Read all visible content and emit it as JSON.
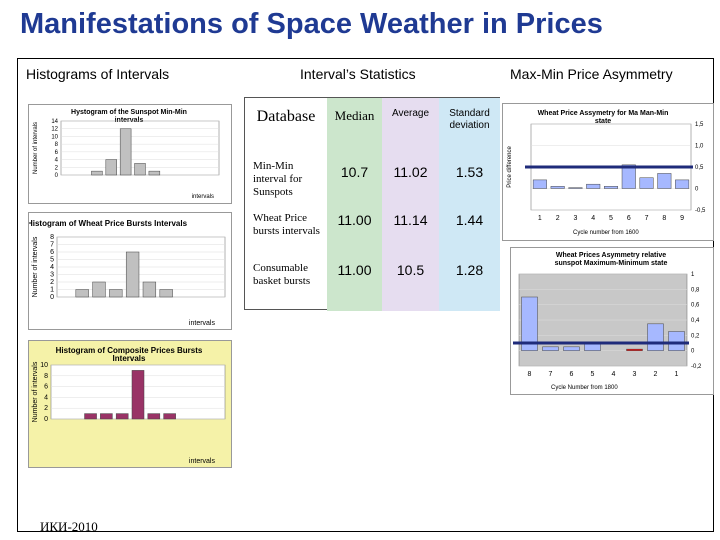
{
  "slide": {
    "title": "Manifestations of Space Weather in Prices",
    "columns": {
      "left": "Histograms of Intervals",
      "middle": "Interval’s Statistics",
      "right": "Max-Min Price Asymmetry"
    },
    "footer": "ИКИ-2010"
  },
  "stats_table": {
    "headers": {
      "database": "Database",
      "median": "Median",
      "average": "Average",
      "std": "Standard deviation"
    },
    "rows": [
      {
        "label": "Min-Min interval for Sunspots",
        "median": "10.7",
        "average": "11.02",
        "std": "1.53"
      },
      {
        "label": "Wheat Price bursts intervals",
        "median": "11.00",
        "average": "11.14",
        "std": "1.44"
      },
      {
        "label": "Consumable basket bursts",
        "median": "11.00",
        "average": "10.5",
        "std": "1.28"
      }
    ],
    "colors": {
      "median_bg": "#cce6cc",
      "average_bg": "#e6ddf0",
      "std_bg": "#cfe8f5"
    }
  },
  "chart_data": [
    {
      "id": "sunspot-histogram",
      "type": "bar",
      "title": "Hystogram of the Sunspot Min-Min intervals",
      "ylabel": "Number of intervals",
      "xlabel": "intervals",
      "ylim": [
        0,
        14
      ],
      "yticks": [
        "0",
        "2",
        "4",
        "6",
        "8",
        "10",
        "12",
        "14"
      ],
      "categories": [
        "",
        "",
        "",
        "",
        "",
        "",
        "",
        "",
        "",
        "",
        ""
      ],
      "values": [
        0,
        0,
        1,
        4,
        12,
        3,
        1,
        0,
        0,
        0,
        0
      ],
      "color": "#c0c0c0"
    },
    {
      "id": "wheat-histogram",
      "type": "bar",
      "title": "Histogram of Wheat Price Bursts Intervals",
      "ylabel": "Number of intervals",
      "xlabel": "intervals",
      "ylim": [
        0,
        8
      ],
      "yticks": [
        "0",
        "1",
        "2",
        "3",
        "4",
        "5",
        "6",
        "7",
        "8"
      ],
      "categories": [
        "",
        "",
        "",
        "",
        "",
        "",
        "",
        "",
        "",
        ""
      ],
      "values": [
        0,
        1,
        2,
        1,
        6,
        2,
        1,
        0,
        0,
        0
      ],
      "color": "#c0c0c0"
    },
    {
      "id": "composite-histogram",
      "type": "bar",
      "title": "Histogram of Composite Priсes Bursts Intervals",
      "ylabel": "Number of intervals",
      "xlabel": "intervals",
      "ylim": [
        0,
        10
      ],
      "yticks": [
        "0",
        "2",
        "4",
        "6",
        "8",
        "10"
      ],
      "categories": [
        "",
        "",
        "",
        "",
        "",
        "",
        "",
        "",
        "",
        "",
        ""
      ],
      "values": [
        0,
        0,
        1,
        1,
        1,
        9,
        1,
        1,
        0,
        0,
        0
      ],
      "color": "#993366"
    },
    {
      "id": "wheat-asymmetry-max-min",
      "type": "bar",
      "title": "Wheat Price Assymetry for Ma Man-Min state",
      "ylabel": "Price difference",
      "xlabel": "Cycle number from 1600",
      "ylim": [
        -0.5,
        1.5
      ],
      "yticks": [
        "-0,5",
        "0",
        "0,5",
        "1,0",
        "1,5"
      ],
      "categories": [
        "1",
        "2",
        "3",
        "4",
        "5",
        "6",
        "7",
        "8",
        "9"
      ],
      "values": [
        0.2,
        0.05,
        0.02,
        0.1,
        0.05,
        0.55,
        0.25,
        0.35,
        0.2
      ],
      "color": "#a6b8ff"
    },
    {
      "id": "wheat-asymmetry-sunspot",
      "type": "bar",
      "title": "Wheat Prices Asymmetry relative sunspot Maximum-Minimum state",
      "xlabel": "Cycle Number from 1800",
      "ylim": [
        -0.2,
        1.0
      ],
      "yticks": [
        "-0,2",
        "0",
        "0,2",
        "0,4",
        "0,6",
        "0,8",
        "1"
      ],
      "categories": [
        "8",
        "7",
        "6",
        "5",
        "4",
        "3",
        "2",
        "1"
      ],
      "values": [
        0.7,
        0.05,
        0.05,
        0.1,
        0.0,
        0.02,
        0.35,
        0.25
      ],
      "highlight": [
        4,
        5
      ],
      "color": "#a6b8ff",
      "highlight_color": "#ff0000"
    }
  ]
}
